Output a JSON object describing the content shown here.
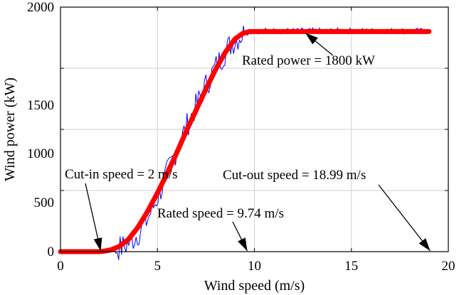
{
  "chart_data": {
    "type": "line",
    "xlabel": "Wind speed (m/s)",
    "ylabel": "Wind power (kW)",
    "xlim": [
      0,
      20
    ],
    "ylim": [
      0,
      2000
    ],
    "x_ticks": [
      0,
      5,
      10,
      15,
      20
    ],
    "y_ticks": [
      0,
      500,
      1000,
      1500,
      2000
    ],
    "x_tick_labels": [
      "0",
      "5",
      "10",
      "15",
      "20"
    ],
    "y_tick_labels": [
      "0",
      "500",
      "1000",
      "1500",
      "2000"
    ],
    "grid": true,
    "colors": {
      "measured": "#0000ff",
      "fitted": "#ff0000",
      "annotation": "#000000"
    },
    "series": [
      {
        "x": [
          0,
          2,
          2.2,
          2.5,
          3,
          3.3,
          3.6,
          3.9,
          4.2,
          4.5,
          4.8,
          5.1,
          5.4,
          5.7,
          6,
          6.3,
          6.6,
          6.9,
          7.2,
          7.5,
          7.8,
          8.1,
          8.4,
          8.7,
          9,
          9.3,
          9.5,
          9.74,
          10.2,
          11,
          12,
          13,
          14,
          15,
          16,
          17,
          18,
          19
        ],
        "y": [
          0,
          0,
          2,
          8,
          25,
          45,
          80,
          130,
          190,
          270,
          370,
          480,
          600,
          720,
          840,
          950,
          1060,
          1160,
          1260,
          1360,
          1450,
          1540,
          1610,
          1680,
          1730,
          1770,
          1790,
          1800,
          1805,
          1805,
          1805,
          1805,
          1805,
          1805,
          1805,
          1805,
          1805,
          1805
        ]
      },
      {
        "x": [
          0,
          2,
          2.3,
          2.6,
          3,
          3.5,
          4,
          4.5,
          5,
          5.5,
          6,
          6.5,
          7,
          7.5,
          8,
          8.5,
          9,
          9.4,
          9.74,
          10.5,
          12,
          14,
          16,
          18,
          19
        ],
        "y": [
          0,
          0,
          5,
          15,
          40,
          100,
          200,
          330,
          480,
          640,
          810,
          990,
          1160,
          1330,
          1490,
          1630,
          1740,
          1785,
          1800,
          1800,
          1800,
          1800,
          1800,
          1800,
          1800
        ]
      }
    ],
    "annotations": [
      {
        "text": "Cut-in speed = 2 m/s",
        "x": 2,
        "y": 0
      },
      {
        "text": "Rated speed = 9.74 m/s",
        "x": 9.74,
        "y": 0
      },
      {
        "text": "Cut-out speed = 18.99 m/s",
        "x": 18.99,
        "y": 0
      },
      {
        "text": "Rated power = 1800 kW",
        "x": 12.7,
        "y": 1800
      }
    ]
  }
}
